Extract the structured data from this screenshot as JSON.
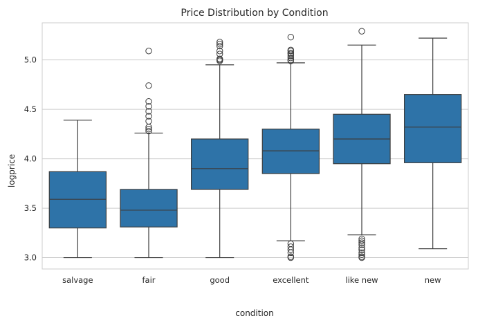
{
  "chart_data": {
    "type": "box",
    "title": "Price Distribution by Condition",
    "xlabel": "condition",
    "ylabel": "logprice",
    "ylim": [
      2.885,
      5.375
    ],
    "yticks": [
      3.0,
      3.5,
      4.0,
      4.5,
      5.0
    ],
    "ytick_labels": [
      "3.0",
      "3.5",
      "4.0",
      "4.5",
      "5.0"
    ],
    "grid": "horizontal",
    "box_color": "#2e73a8",
    "line_color": "#3d3d3d",
    "categories": [
      "salvage",
      "fair",
      "good",
      "excellent",
      "like new",
      "new"
    ],
    "boxes": [
      {
        "category": "salvage",
        "whisker_low": 3.0,
        "q1": 3.3,
        "median": 3.59,
        "q3": 3.87,
        "whisker_high": 4.39,
        "outliers": []
      },
      {
        "category": "fair",
        "whisker_low": 3.0,
        "q1": 3.31,
        "median": 3.48,
        "q3": 3.69,
        "whisker_high": 4.26,
        "outliers": [
          4.28,
          4.3,
          4.32,
          4.38,
          4.43,
          4.48,
          4.53,
          4.58,
          4.74,
          5.09
        ]
      },
      {
        "category": "good",
        "whisker_low": 3.0,
        "q1": 3.69,
        "median": 3.9,
        "q3": 4.2,
        "whisker_high": 4.95,
        "outliers": [
          4.99,
          5.0,
          5.01,
          5.06,
          5.09,
          5.14,
          5.16,
          5.18
        ]
      },
      {
        "category": "excellent",
        "whisker_low": 3.17,
        "q1": 3.85,
        "median": 4.08,
        "q3": 4.3,
        "whisker_high": 4.97,
        "outliers": [
          3.0,
          3.01,
          3.05,
          3.08,
          3.11,
          3.14,
          4.99,
          5.0,
          5.02,
          5.04,
          5.06,
          5.07,
          5.09,
          5.1,
          5.23
        ]
      },
      {
        "category": "like new",
        "whisker_low": 3.23,
        "q1": 3.95,
        "median": 4.2,
        "q3": 4.45,
        "whisker_high": 5.15,
        "outliers": [
          3.0,
          3.01,
          3.03,
          3.05,
          3.08,
          3.1,
          3.13,
          3.15,
          3.17,
          3.19,
          5.29
        ]
      },
      {
        "category": "new",
        "whisker_low": 3.09,
        "q1": 3.96,
        "median": 4.32,
        "q3": 4.65,
        "whisker_high": 5.22,
        "outliers": []
      }
    ]
  }
}
